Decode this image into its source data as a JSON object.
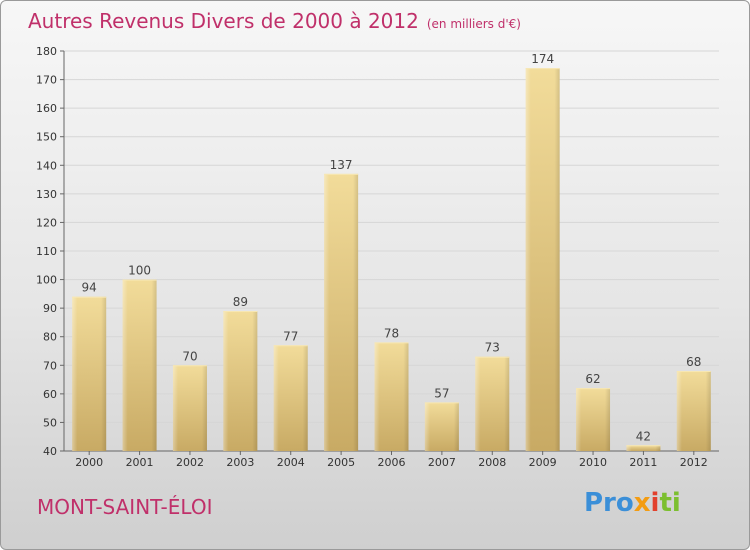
{
  "title": "Autres Revenus Divers de 2000 à 2012",
  "subtitle": "(en milliers d'€)",
  "location": "MONT-SAINT-ÉLOI",
  "logo": {
    "p1": "Pro",
    "p2": "x",
    "p3": "i",
    "p4": "ti"
  },
  "colors": {
    "title": "#c0306a",
    "bar_top": "#f2dc9a",
    "bar_bottom": "#c8aa64"
  },
  "chart_data": {
    "type": "bar",
    "title": "Autres Revenus Divers de 2000 à 2012",
    "subtitle": "(en milliers d'€)",
    "xlabel": "",
    "ylabel": "",
    "categories": [
      "2000",
      "2001",
      "2002",
      "2003",
      "2004",
      "2005",
      "2006",
      "2007",
      "2008",
      "2009",
      "2010",
      "2011",
      "2012"
    ],
    "values": [
      94,
      100,
      70,
      89,
      77,
      137,
      78,
      57,
      73,
      174,
      62,
      42,
      68
    ],
    "ylim": [
      40,
      180
    ],
    "yticks": [
      40,
      50,
      60,
      70,
      80,
      90,
      100,
      110,
      120,
      130,
      140,
      150,
      160,
      170,
      180
    ],
    "grid": true
  }
}
